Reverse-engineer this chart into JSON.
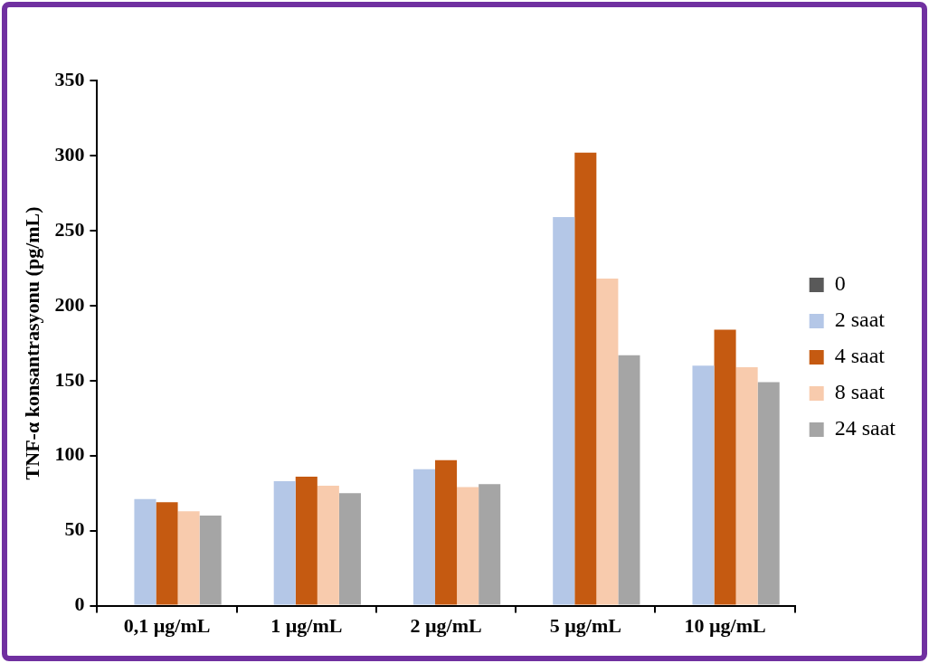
{
  "chart_data": {
    "type": "bar",
    "ylabel": "TNF-α konsantrasyonu (pg/mL)",
    "categories": [
      "0,1 µg/mL",
      "1 µg/mL",
      "2 µg/mL",
      "5 µg/mL",
      "10 µg/mL"
    ],
    "series": [
      {
        "name": "0",
        "color": "#595959",
        "values": [
          0,
          0,
          0,
          0,
          0
        ]
      },
      {
        "name": "2 saat",
        "color": "#b4c7e7",
        "values": [
          71,
          83,
          91,
          259,
          160
        ]
      },
      {
        "name": "4 saat",
        "color": "#c55a11",
        "values": [
          69,
          86,
          97,
          302,
          184
        ]
      },
      {
        "name": "8 saat",
        "color": "#f8cbad",
        "values": [
          63,
          80,
          79,
          218,
          159
        ]
      },
      {
        "name": "24 saat",
        "color": "#a5a5a5",
        "values": [
          60,
          75,
          81,
          167,
          149
        ]
      }
    ],
    "ylim": [
      0,
      350
    ],
    "yticks": [
      0,
      50,
      100,
      150,
      200,
      250,
      300,
      350
    ],
    "grid": false,
    "legend": "right"
  }
}
